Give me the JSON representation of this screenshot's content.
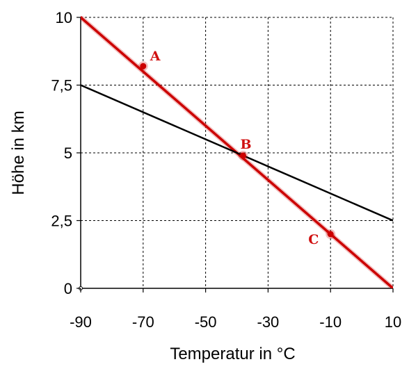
{
  "chart_data": {
    "type": "line",
    "xlabel": "Temperatur in °C",
    "ylabel": "Höhe in km",
    "xlim": [
      -90,
      10
    ],
    "ylim": [
      0,
      10
    ],
    "x_ticks": [
      -90,
      -70,
      -50,
      -30,
      -10,
      10
    ],
    "x_tick_labels": [
      "-90",
      "-70",
      "-50",
      "-30",
      "-10",
      "10"
    ],
    "y_ticks": [
      0,
      2.5,
      5,
      7.5,
      10
    ],
    "y_tick_labels": [
      "0",
      "2,5",
      "5",
      "7,5",
      "10"
    ],
    "grid": true,
    "series": [
      {
        "color": "#cc0000",
        "points": [
          {
            "x": -92,
            "y": 10.2
          },
          {
            "x": 10,
            "y": 0
          }
        ]
      },
      {
        "color": "#000000",
        "points": [
          {
            "x": -90,
            "y": 7.5
          },
          {
            "x": 10,
            "y": 2.5
          }
        ]
      }
    ],
    "annotations": [
      {
        "label": "A",
        "x": -70,
        "y": 8.2,
        "color": "#cc0000"
      },
      {
        "label": "B",
        "x": -38,
        "y": 4.9,
        "color": "#cc0000"
      },
      {
        "label": "C",
        "x": -10,
        "y": 2.0,
        "color": "#cc0000"
      }
    ]
  }
}
